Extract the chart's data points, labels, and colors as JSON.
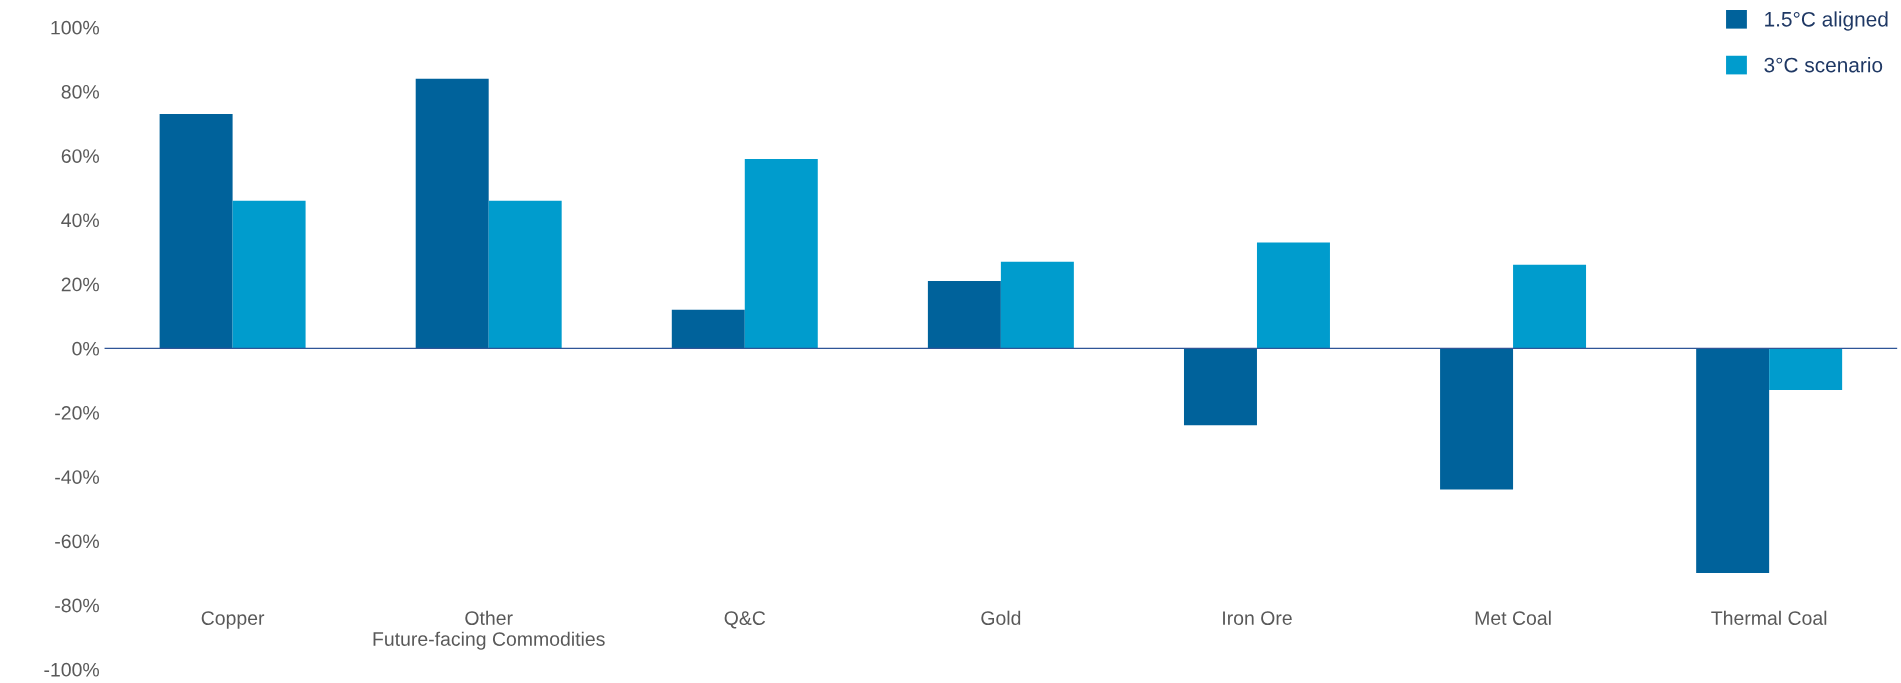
{
  "chart_data": {
    "type": "bar",
    "categories": [
      "Copper",
      "Other\nFuture-facing Commodities",
      "Q&C",
      "Gold",
      "Iron Ore",
      "Met Coal",
      "Thermal Coal"
    ],
    "series": [
      {
        "name": "1.5°C aligned",
        "color": "#00629b",
        "values": [
          73,
          84,
          12,
          21,
          -24,
          -44,
          -70
        ]
      },
      {
        "name": "3°C scenario",
        "color": "#009ccd",
        "values": [
          46,
          46,
          59,
          27,
          33,
          26,
          -13
        ]
      }
    ],
    "ylim": [
      -100,
      100
    ],
    "yticks": [
      {
        "value": -100,
        "label": "-100%"
      },
      {
        "value": -80,
        "label": "-80%"
      },
      {
        "value": -60,
        "label": "-60%"
      },
      {
        "value": -40,
        "label": "-40%"
      },
      {
        "value": -20,
        "label": "-20%"
      },
      {
        "value": 0,
        "label": "0%"
      },
      {
        "value": 20,
        "label": "20%"
      },
      {
        "value": 40,
        "label": "40%"
      },
      {
        "value": 60,
        "label": "60%"
      },
      {
        "value": 80,
        "label": "80%"
      },
      {
        "value": 100,
        "label": "100%"
      }
    ],
    "ref_lines": [
      {
        "axis": "y",
        "value": 0,
        "color": "#2f5597"
      }
    ],
    "grid": false,
    "legend": "top right"
  }
}
